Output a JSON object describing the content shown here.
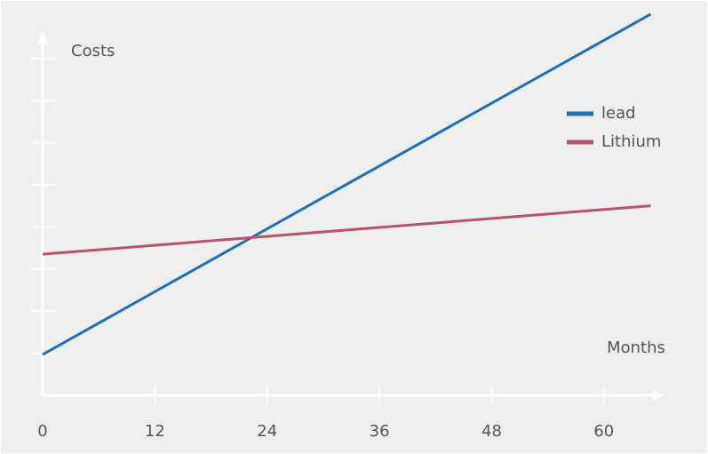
{
  "chart_data": {
    "type": "line",
    "x_label": "Months",
    "y_label": "Costs",
    "x": [
      0,
      65
    ],
    "series": [
      {
        "name": "lead",
        "color": "#1f6fb6",
        "values": [
          0.97,
          9.05
        ]
      },
      {
        "name": "Lithium",
        "color": "#b85468",
        "values": [
          3.35,
          4.5
        ]
      }
    ],
    "xlim": [
      0,
      66
    ],
    "xticks": [
      0,
      12,
      24,
      36,
      48,
      60
    ],
    "ylim": [
      0,
      8.5
    ],
    "yticks": [
      1,
      2,
      3,
      4,
      5,
      6,
      7,
      8
    ],
    "legend": "right"
  }
}
